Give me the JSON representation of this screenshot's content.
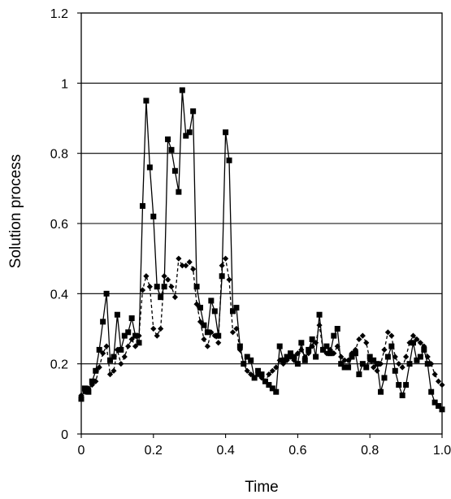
{
  "chart_data": {
    "type": "line",
    "title": "",
    "xlabel": "Time",
    "ylabel": "Solution process",
    "xlim": [
      0,
      1
    ],
    "ylim": [
      0,
      1.2
    ],
    "x_ticks": [
      "0",
      "0.2",
      "0.4",
      "0.6",
      "0.8",
      "1.0"
    ],
    "y_ticks": [
      "0",
      "0.2",
      "0.4",
      "0.6",
      "0.8",
      "1",
      "1.2"
    ],
    "grid": "horizontal",
    "legend": "none",
    "colors": {
      "line": "#000000",
      "background": "#ffffff"
    },
    "series": [
      {
        "marker": "square",
        "line_style": "solid",
        "x": [
          0.0,
          0.01,
          0.02,
          0.03,
          0.04,
          0.05,
          0.06,
          0.07,
          0.08,
          0.09,
          0.1,
          0.11,
          0.12,
          0.13,
          0.14,
          0.15,
          0.16,
          0.17,
          0.18,
          0.19,
          0.2,
          0.21,
          0.22,
          0.23,
          0.24,
          0.25,
          0.26,
          0.27,
          0.28,
          0.29,
          0.3,
          0.31,
          0.32,
          0.33,
          0.34,
          0.35,
          0.36,
          0.37,
          0.38,
          0.39,
          0.4,
          0.41,
          0.42,
          0.43,
          0.44,
          0.45,
          0.46,
          0.47,
          0.48,
          0.49,
          0.5,
          0.51,
          0.52,
          0.53,
          0.54,
          0.55,
          0.56,
          0.57,
          0.58,
          0.59,
          0.6,
          0.61,
          0.62,
          0.63,
          0.64,
          0.65,
          0.66,
          0.67,
          0.68,
          0.69,
          0.7,
          0.71,
          0.72,
          0.73,
          0.74,
          0.75,
          0.76,
          0.77,
          0.78,
          0.79,
          0.8,
          0.81,
          0.82,
          0.83,
          0.84,
          0.85,
          0.86,
          0.87,
          0.88,
          0.89,
          0.9,
          0.91,
          0.92,
          0.93,
          0.94,
          0.95,
          0.96,
          0.97,
          0.98,
          0.99,
          1.0
        ],
        "y": [
          0.1,
          0.13,
          0.12,
          0.15,
          0.18,
          0.24,
          0.32,
          0.4,
          0.21,
          0.22,
          0.34,
          0.24,
          0.28,
          0.29,
          0.33,
          0.28,
          0.26,
          0.65,
          0.95,
          0.76,
          0.62,
          0.42,
          0.39,
          0.42,
          0.84,
          0.81,
          0.75,
          0.69,
          0.98,
          0.85,
          0.86,
          0.92,
          0.42,
          0.36,
          0.31,
          0.29,
          0.38,
          0.35,
          0.28,
          0.45,
          0.86,
          0.78,
          0.35,
          0.36,
          0.25,
          0.2,
          0.22,
          0.21,
          0.16,
          0.18,
          0.17,
          0.15,
          0.14,
          0.13,
          0.12,
          0.25,
          0.21,
          0.22,
          0.23,
          0.22,
          0.2,
          0.26,
          0.21,
          0.24,
          0.27,
          0.22,
          0.34,
          0.24,
          0.25,
          0.23,
          0.28,
          0.3,
          0.2,
          0.19,
          0.19,
          0.22,
          0.23,
          0.17,
          0.2,
          0.19,
          0.22,
          0.21,
          0.2,
          0.12,
          0.16,
          0.22,
          0.25,
          0.18,
          0.14,
          0.11,
          0.14,
          0.2,
          0.26,
          0.21,
          0.22,
          0.24,
          0.2,
          0.12,
          0.09,
          0.08,
          0.07
        ]
      },
      {
        "marker": "diamond",
        "line_style": "dashed",
        "x": [
          0.0,
          0.01,
          0.02,
          0.03,
          0.04,
          0.05,
          0.06,
          0.07,
          0.08,
          0.09,
          0.1,
          0.11,
          0.12,
          0.13,
          0.14,
          0.15,
          0.16,
          0.17,
          0.18,
          0.19,
          0.2,
          0.21,
          0.22,
          0.23,
          0.24,
          0.25,
          0.26,
          0.27,
          0.28,
          0.29,
          0.3,
          0.31,
          0.32,
          0.33,
          0.34,
          0.35,
          0.36,
          0.37,
          0.38,
          0.39,
          0.4,
          0.41,
          0.42,
          0.43,
          0.44,
          0.45,
          0.46,
          0.47,
          0.48,
          0.49,
          0.5,
          0.51,
          0.52,
          0.53,
          0.54,
          0.55,
          0.56,
          0.57,
          0.58,
          0.59,
          0.6,
          0.61,
          0.62,
          0.63,
          0.64,
          0.65,
          0.66,
          0.67,
          0.68,
          0.69,
          0.7,
          0.71,
          0.72,
          0.73,
          0.74,
          0.75,
          0.76,
          0.77,
          0.78,
          0.79,
          0.8,
          0.81,
          0.82,
          0.83,
          0.84,
          0.85,
          0.86,
          0.87,
          0.88,
          0.89,
          0.9,
          0.91,
          0.92,
          0.93,
          0.94,
          0.95,
          0.96,
          0.97,
          0.98,
          0.99,
          1.0
        ],
        "y": [
          0.11,
          0.12,
          0.13,
          0.14,
          0.15,
          0.19,
          0.23,
          0.25,
          0.17,
          0.18,
          0.24,
          0.2,
          0.22,
          0.25,
          0.27,
          0.25,
          0.28,
          0.41,
          0.45,
          0.42,
          0.3,
          0.28,
          0.3,
          0.45,
          0.44,
          0.42,
          0.39,
          0.5,
          0.48,
          0.48,
          0.49,
          0.47,
          0.37,
          0.32,
          0.27,
          0.25,
          0.29,
          0.28,
          0.26,
          0.48,
          0.5,
          0.44,
          0.29,
          0.3,
          0.24,
          0.2,
          0.18,
          0.17,
          0.16,
          0.17,
          0.16,
          0.15,
          0.17,
          0.18,
          0.19,
          0.21,
          0.2,
          0.21,
          0.22,
          0.21,
          0.23,
          0.24,
          0.22,
          0.23,
          0.25,
          0.26,
          0.31,
          0.24,
          0.23,
          0.24,
          0.23,
          0.25,
          0.22,
          0.21,
          0.21,
          0.23,
          0.24,
          0.27,
          0.28,
          0.26,
          0.21,
          0.19,
          0.18,
          0.2,
          0.24,
          0.29,
          0.28,
          0.22,
          0.2,
          0.19,
          0.22,
          0.26,
          0.28,
          0.27,
          0.26,
          0.25,
          0.22,
          0.2,
          0.17,
          0.15,
          0.14
        ]
      }
    ]
  }
}
